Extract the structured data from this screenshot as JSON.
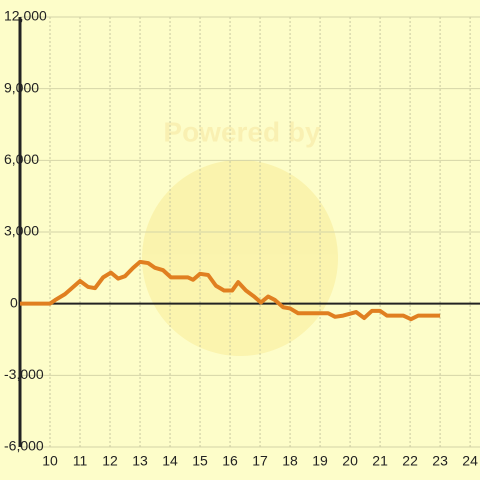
{
  "chart_data": {
    "type": "line",
    "watermark": "Powered by",
    "x": [
      9,
      10,
      10.17,
      10.5,
      11,
      11.27,
      11.5,
      11.77,
      12.03,
      12.27,
      12.5,
      12.77,
      13,
      13.27,
      13.5,
      13.77,
      14.03,
      14.33,
      14.6,
      14.77,
      15,
      15.27,
      15.53,
      15.8,
      16.07,
      16.27,
      16.53,
      16.8,
      17.03,
      17.27,
      17.5,
      17.77,
      18,
      18.27,
      18.8,
      19.27,
      19.5,
      19.77,
      20.2,
      20.47,
      20.73,
      21,
      21.23,
      21.77,
      22.03,
      22.27,
      23
    ],
    "series": [
      {
        "color": "#e07f20",
        "values": [
          0,
          0,
          150,
          400,
          950,
          700,
          650,
          1100,
          1300,
          1050,
          1150,
          1500,
          1750,
          1700,
          1500,
          1400,
          1100,
          1100,
          1100,
          1000,
          1250,
          1200,
          750,
          550,
          550,
          900,
          550,
          300,
          50,
          300,
          150,
          -150,
          -200,
          -400,
          -400,
          -400,
          -550,
          -500,
          -350,
          -600,
          -300,
          -300,
          -500,
          -500,
          -650,
          -500,
          -500
        ]
      }
    ],
    "xlim": [
      9,
      24.33
    ],
    "xticks": [
      10,
      11,
      12,
      13,
      14,
      15,
      16,
      17,
      18,
      19,
      20,
      21,
      22,
      23,
      24
    ],
    "ylim": [
      -6000,
      12000
    ],
    "yticks": [
      {
        "value": -6000,
        "label": "-6,000"
      },
      {
        "value": -3000,
        "label": "-3,000"
      },
      0,
      {
        "value": 3000,
        "label": "3,000"
      },
      {
        "value": 6000,
        "label": "6,000"
      },
      {
        "value": 9000,
        "label": "9,000"
      },
      {
        "value": 12000,
        "label": "12,000"
      }
    ],
    "grid": true
  }
}
